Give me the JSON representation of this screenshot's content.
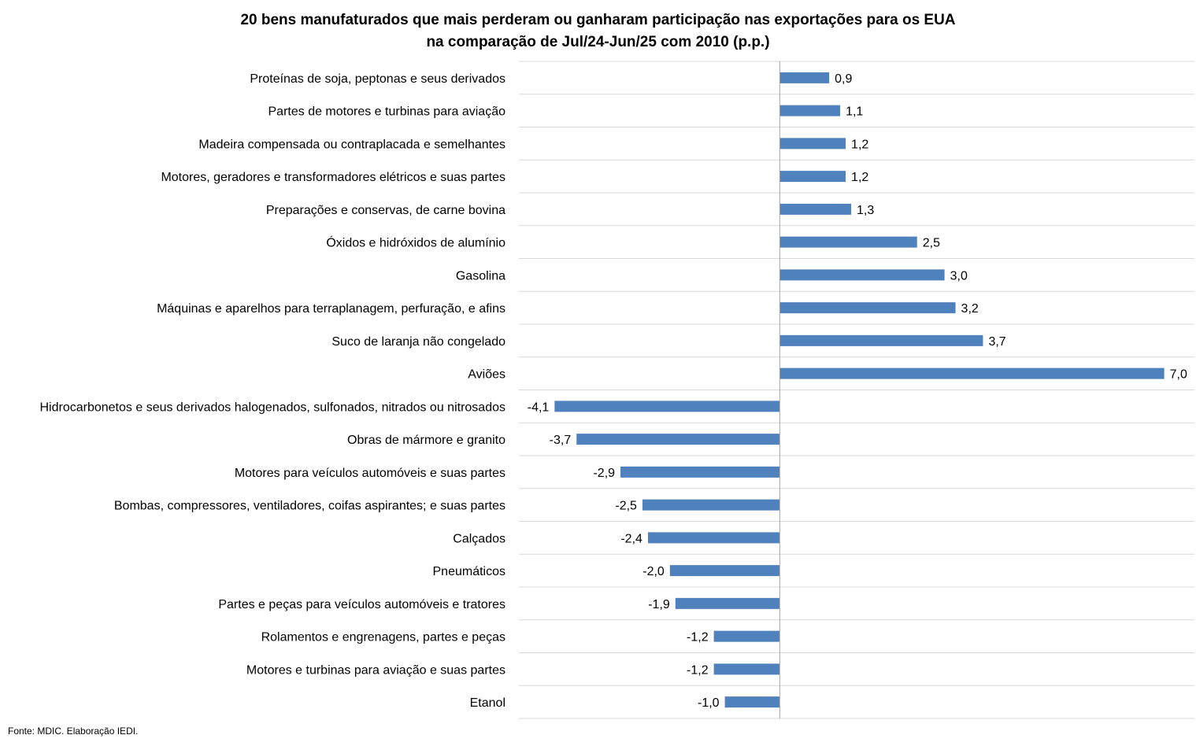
{
  "chart_data": {
    "type": "bar",
    "orientation": "horizontal",
    "title_lines": [
      "20 bens manufaturados que mais perderam ou ganharam participação nas exportações para os EUA",
      "na comparação de Jul/24-Jun/25 com 2010 (p.p.)"
    ],
    "categories": [
      "Proteínas de soja, peptonas e seus derivados",
      "Partes de motores e turbinas para aviação",
      "Madeira compensada ou contraplacada e semelhantes",
      "Motores, geradores e transformadores elétricos e suas partes",
      "Preparações e conservas, de carne bovina",
      "Óxidos e hidróxidos de alumínio",
      "Gasolina",
      "Máquinas e aparelhos para terraplanagem, perfuração, e afins",
      "Suco de laranja não congelado",
      "Aviões",
      "Hidrocarbonetos e seus derivados halogenados, sulfonados, nitrados ou nitrosados",
      "Obras de mármore e granito",
      "Motores para veículos automóveis e suas partes",
      "Bombas, compressores, ventiladores, coifas aspirantes; e suas partes",
      "Calçados",
      "Pneumáticos",
      "Partes e peças para veículos automóveis e tratores",
      "Rolamentos e engrenagens, partes e peças",
      "Motores e turbinas para aviação e suas partes",
      "Etanol"
    ],
    "values": [
      0.9,
      1.1,
      1.2,
      1.2,
      1.3,
      2.5,
      3.0,
      3.2,
      3.7,
      7.0,
      -4.1,
      -3.7,
      -2.9,
      -2.5,
      -2.4,
      -2.0,
      -1.9,
      -1.2,
      -1.2,
      -1.0
    ],
    "value_labels": [
      "0,9",
      "1,1",
      "1,2",
      "1,2",
      "1,3",
      "2,5",
      "3,0",
      "3,2",
      "3,7",
      "7,0",
      "-4,1",
      "-3,7",
      "-2,9",
      "-2,5",
      "-2,4",
      "-2,0",
      "-1,9",
      "-1,2",
      "-1,2",
      "-1,0"
    ],
    "xlim": [
      -4.75,
      7.55
    ],
    "bar_color": "#4F81BD",
    "gridlines": true,
    "legend": "none"
  },
  "source_note": "Fonte: MDIC. Elaboração IEDI."
}
